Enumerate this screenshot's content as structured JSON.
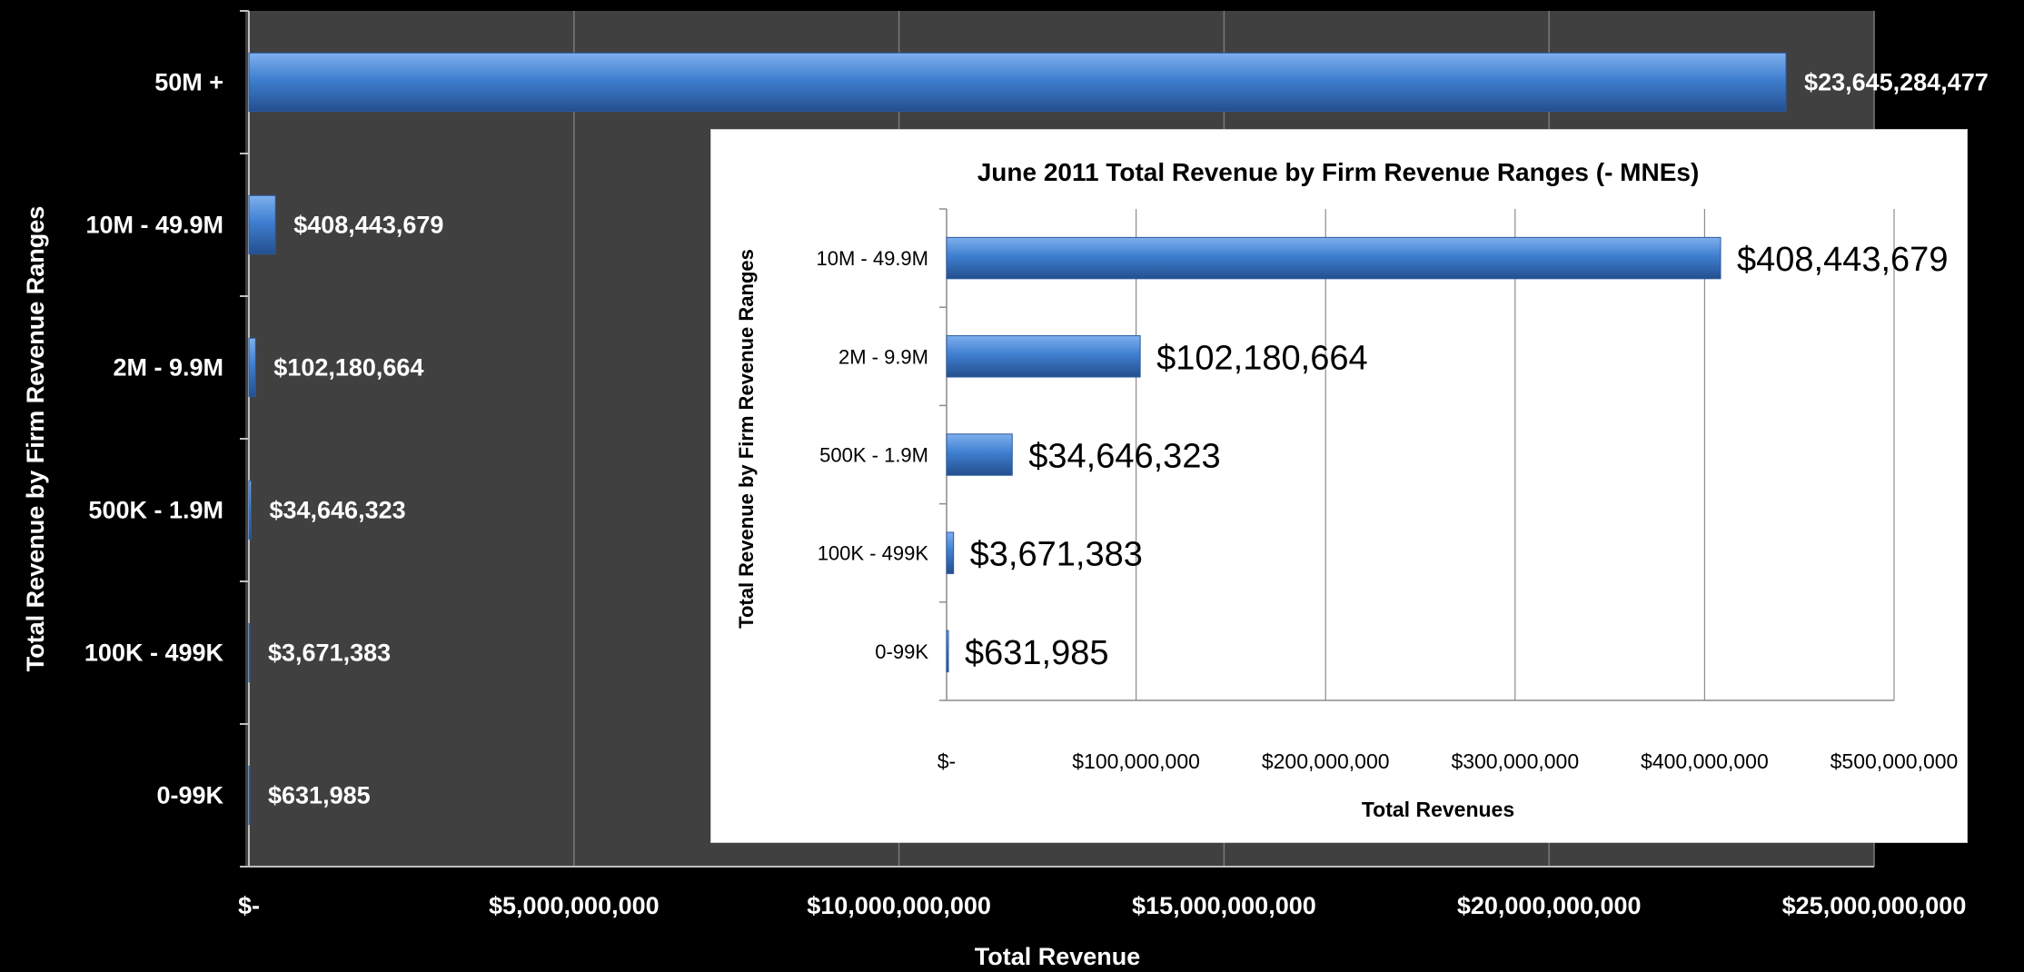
{
  "chart_data": [
    {
      "type": "bar",
      "orientation": "horizontal",
      "title": "",
      "xlabel": "Total Revenue",
      "ylabel": "Total Revenue by Firm Revenue Ranges",
      "categories": [
        "50M +",
        "10M - 49.9M",
        "2M - 9.9M",
        "500K - 1.9M",
        "100K - 499K",
        "0-99K"
      ],
      "values": [
        23645284477,
        408443679,
        102180664,
        34646323,
        3671383,
        631985
      ],
      "data_labels": [
        "$23,645,284,477",
        "$408,443,679",
        "$102,180,664",
        "$34,646,323",
        "$3,671,383",
        "$631,985"
      ],
      "xlim": [
        0,
        25000000000
      ],
      "x_tick_labels": [
        "$-",
        "$5,000,000,000",
        "$10,000,000,000",
        "$15,000,000,000",
        "$20,000,000,000",
        "$25,000,000,000"
      ],
      "grid": true,
      "colors": {
        "background": "#000000",
        "plot_area": "#404040",
        "bar": "#3f7fd0",
        "text": "#ffffff"
      }
    },
    {
      "type": "bar",
      "orientation": "horizontal",
      "title": "June 2011 Total Revenue by Firm Revenue Ranges (- MNEs)",
      "xlabel": "Total Revenues",
      "ylabel": "Total Revenue by Firm Revenue Ranges",
      "categories": [
        "10M - 49.9M",
        "2M - 9.9M",
        "500K - 1.9M",
        "100K - 499K",
        "0-99K"
      ],
      "values": [
        408443679,
        102180664,
        34646323,
        3671383,
        631985
      ],
      "data_labels": [
        "$408,443,679",
        "$102,180,664",
        "$34,646,323",
        "$3,671,383",
        "$631,985"
      ],
      "xlim": [
        0,
        500000000
      ],
      "x_tick_labels": [
        "$-",
        "$100,000,000",
        "$200,000,000",
        "$300,000,000",
        "$400,000,000",
        "$500,000,000"
      ],
      "grid": true,
      "colors": {
        "background": "#ffffff",
        "bar": "#3f7fd0",
        "grid": "#8c8c8c",
        "text": "#000000"
      }
    }
  ]
}
